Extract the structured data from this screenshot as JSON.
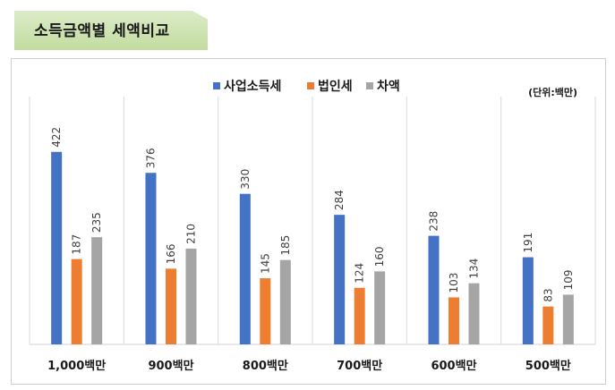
{
  "header": {
    "title": "소득금액별 세액비교"
  },
  "chart_data": {
    "type": "bar",
    "categories": [
      "1,000백만",
      "900백만",
      "800백만",
      "700백만",
      "600백만",
      "500백만"
    ],
    "series": [
      {
        "name": "사업소득세",
        "color": "#4472c4",
        "values": [
          422,
          376,
          330,
          284,
          238,
          191
        ]
      },
      {
        "name": "법인세",
        "color": "#ed7d31",
        "values": [
          187,
          166,
          145,
          124,
          103,
          83
        ]
      },
      {
        "name": "차액",
        "color": "#a5a5a5",
        "values": [
          235,
          210,
          185,
          160,
          134,
          109
        ]
      }
    ],
    "unit_note": "(단위:백만)",
    "ylim": [
      0,
      500
    ],
    "legend_position": "top-center",
    "grid": false
  }
}
